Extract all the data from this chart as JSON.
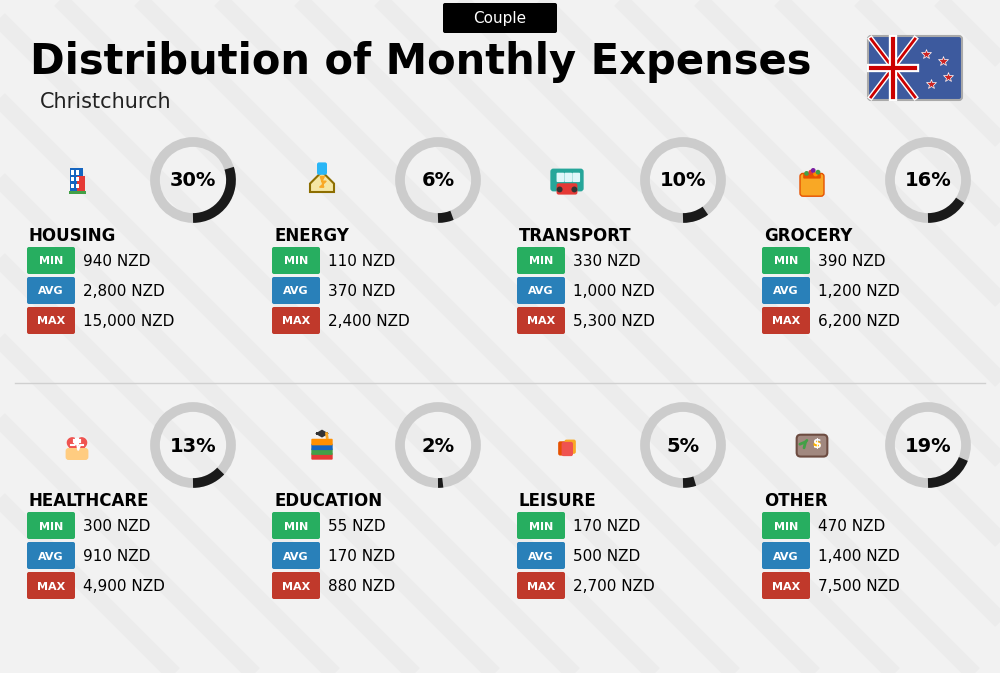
{
  "title": "Distribution of Monthly Expenses",
  "subtitle": "Christchurch",
  "badge": "Couple",
  "bg_color": "#f2f2f2",
  "categories": [
    {
      "name": "HOUSING",
      "pct": 30,
      "min": "940 NZD",
      "avg": "2,800 NZD",
      "max": "15,000 NZD",
      "icon": "🏢",
      "row": 0,
      "col": 0
    },
    {
      "name": "ENERGY",
      "pct": 6,
      "min": "110 NZD",
      "avg": "370 NZD",
      "max": "2,400 NZD",
      "icon": "⚡",
      "row": 0,
      "col": 1
    },
    {
      "name": "TRANSPORT",
      "pct": 10,
      "min": "330 NZD",
      "avg": "1,000 NZD",
      "max": "5,300 NZD",
      "icon": "🚌",
      "row": 0,
      "col": 2
    },
    {
      "name": "GROCERY",
      "pct": 16,
      "min": "390 NZD",
      "avg": "1,200 NZD",
      "max": "6,200 NZD",
      "icon": "🛒",
      "row": 0,
      "col": 3
    },
    {
      "name": "HEALTHCARE",
      "pct": 13,
      "min": "300 NZD",
      "avg": "910 NZD",
      "max": "4,900 NZD",
      "icon": "❤",
      "row": 1,
      "col": 0
    },
    {
      "name": "EDUCATION",
      "pct": 2,
      "min": "55 NZD",
      "avg": "170 NZD",
      "max": "880 NZD",
      "icon": "🎓",
      "row": 1,
      "col": 1
    },
    {
      "name": "LEISURE",
      "pct": 5,
      "min": "170 NZD",
      "avg": "500 NZD",
      "max": "2,700 NZD",
      "icon": "🛍",
      "row": 1,
      "col": 2
    },
    {
      "name": "OTHER",
      "pct": 19,
      "min": "470 NZD",
      "avg": "1,400 NZD",
      "max": "7,500 NZD",
      "icon": "💰",
      "row": 1,
      "col": 3
    }
  ],
  "color_min": "#27ae60",
  "color_avg": "#2980b9",
  "color_max": "#c0392b",
  "stripe_color": "#e8e8e8",
  "title_fontsize": 30,
  "subtitle_fontsize": 15,
  "badge_fontsize": 11,
  "cat_name_fontsize": 12,
  "val_fontsize": 11,
  "lbl_fontsize": 8,
  "pct_fontsize": 14
}
